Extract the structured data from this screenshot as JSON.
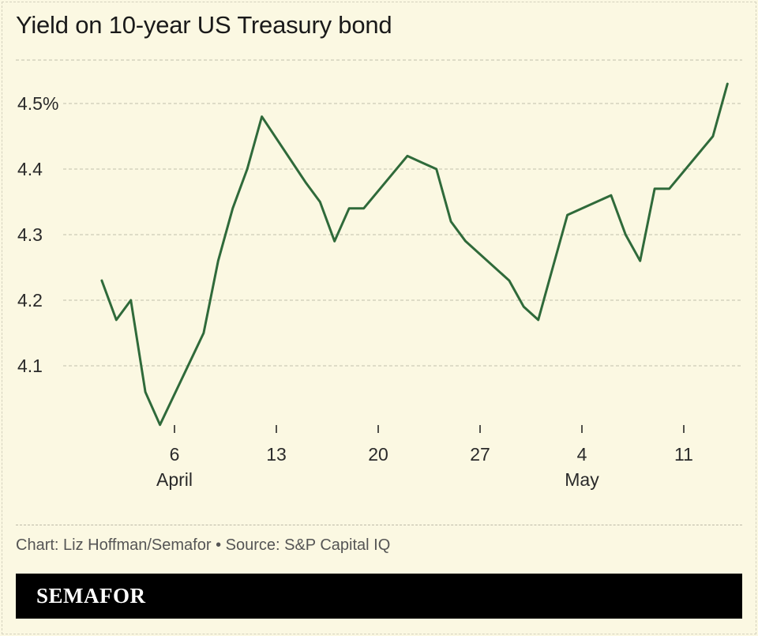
{
  "chart_data": {
    "type": "line",
    "title": "Yield on 10-year US Treasury bond",
    "y_ticks": [
      {
        "value": 4.1,
        "label": "4.1"
      },
      {
        "value": 4.2,
        "label": "4.2"
      },
      {
        "value": 4.3,
        "label": "4.3"
      },
      {
        "value": 4.4,
        "label": "4.4"
      },
      {
        "value": 4.5,
        "label": "4.5%"
      }
    ],
    "ylim": [
      4.0,
      4.57
    ],
    "x_ticks": [
      {
        "day": 6,
        "label": "6",
        "month": "April"
      },
      {
        "day": 13,
        "label": "13",
        "month": ""
      },
      {
        "day": 20,
        "label": "20",
        "month": ""
      },
      {
        "day": 27,
        "label": "27",
        "month": ""
      },
      {
        "day": 34,
        "label": "4",
        "month": "May"
      },
      {
        "day": 41,
        "label": "11",
        "month": ""
      }
    ],
    "xlim": [
      0.5,
      44.2
    ],
    "grid": true,
    "series": [
      {
        "color": "#2f6a3a",
        "points": [
          [
            1,
            4.23
          ],
          [
            2,
            4.17
          ],
          [
            3,
            4.2
          ],
          [
            4,
            4.06
          ],
          [
            5,
            4.01
          ],
          [
            8,
            4.15
          ],
          [
            9,
            4.26
          ],
          [
            10,
            4.34
          ],
          [
            11,
            4.4
          ],
          [
            12,
            4.48
          ],
          [
            15,
            4.38
          ],
          [
            16,
            4.35
          ],
          [
            17,
            4.29
          ],
          [
            18,
            4.34
          ],
          [
            19,
            4.34
          ],
          [
            22,
            4.42
          ],
          [
            23,
            4.41
          ],
          [
            24,
            4.4
          ],
          [
            25,
            4.32
          ],
          [
            26,
            4.29
          ],
          [
            29,
            4.23
          ],
          [
            30,
            4.19
          ],
          [
            31,
            4.17
          ],
          [
            32,
            4.25
          ],
          [
            33,
            4.33
          ],
          [
            36,
            4.36
          ],
          [
            37,
            4.3
          ],
          [
            38,
            4.26
          ],
          [
            39,
            4.37
          ],
          [
            40,
            4.37
          ],
          [
            43,
            4.45
          ],
          [
            44,
            4.53
          ]
        ]
      }
    ]
  },
  "footer": {
    "credit": "Chart: Liz Hoffman/Semafor • Source: S&P Capital IQ",
    "brand": "SEMAFOR"
  }
}
